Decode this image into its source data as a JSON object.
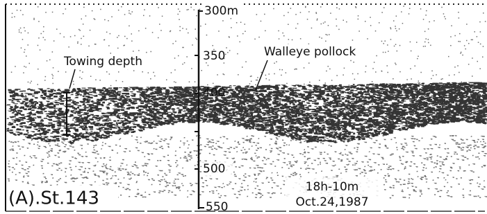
{
  "depth_scale": {
    "labels": [
      "300m",
      "350",
      "400",
      "500",
      "550"
    ]
  },
  "annotations": {
    "towing_depth": "Towing depth",
    "walleye_pollock": "Walleye pollock"
  },
  "station": "(A).St.143",
  "time": "18h-10m",
  "date": "Oct.24,1987"
}
